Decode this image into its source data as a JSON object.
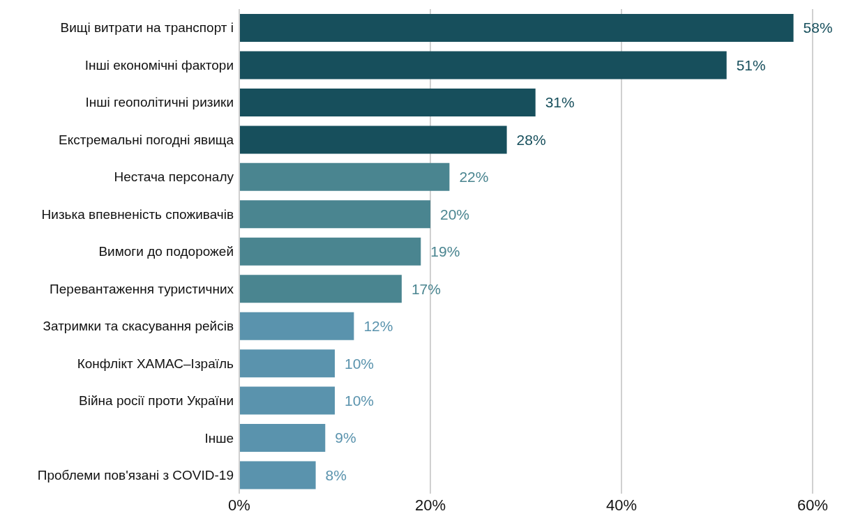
{
  "chart_data": {
    "type": "bar",
    "orientation": "horizontal",
    "categories": [
      "Вищі витрати на транспорт і",
      "Інші економічні фактори",
      "Інші геополітичні ризики",
      "Екстремальні погодні явища",
      "Нестача персоналу",
      "Низька впевненість споживачів",
      "Вимоги до подорожей",
      "Перевантаження туристичних",
      "Затримки та скасування рейсів",
      "Конфлікт ХАМАС–Ізраїль",
      "Війна росії проти України",
      "Інше",
      "Проблеми пов'язані з COVID-19"
    ],
    "values": [
      58,
      51,
      31,
      28,
      22,
      20,
      19,
      17,
      12,
      10,
      10,
      9,
      8
    ],
    "value_labels": [
      "58%",
      "51%",
      "31%",
      "28%",
      "22%",
      "20%",
      "19%",
      "17%",
      "12%",
      "10%",
      "10%",
      "9%",
      "8%"
    ],
    "colors": [
      "#174f5c",
      "#174f5c",
      "#174f5c",
      "#174f5c",
      "#4a8590",
      "#4a8590",
      "#4a8590",
      "#4a8590",
      "#5a93ad",
      "#5a93ad",
      "#5a93ad",
      "#5a93ad",
      "#5a93ad"
    ],
    "xlim": [
      0,
      60
    ],
    "xticks": [
      {
        "value": 0,
        "label": "0%"
      },
      {
        "value": 20,
        "label": "20%"
      },
      {
        "value": 40,
        "label": "40%"
      },
      {
        "value": 60,
        "label": "60%"
      }
    ],
    "grid": "x"
  }
}
